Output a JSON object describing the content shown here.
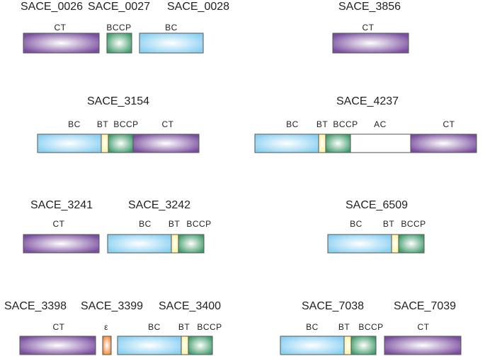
{
  "groups": [
    {
      "genes": [
        "SACE_0026",
        "SACE_0027",
        "SACE_0028"
      ],
      "domains": [
        {
          "label": "CT",
          "color": "#7a4e9e"
        },
        {
          "label": "BCCP",
          "color": "#3e9a6a"
        },
        {
          "label": "BC",
          "color": "#8ad0f2"
        }
      ]
    },
    {
      "genes": [
        "SACE_3856"
      ],
      "domains": [
        {
          "label": "CT",
          "color": "#7a4e9e"
        }
      ]
    },
    {
      "genes": [
        "SACE_3154"
      ],
      "domains": [
        {
          "label": "BC",
          "color": "#8ad0f2"
        },
        {
          "label": "BT",
          "color": "#fff29a"
        },
        {
          "label": "BCCP",
          "color": "#3e9a6a"
        },
        {
          "label": "CT",
          "color": "#7a4e9e"
        }
      ]
    },
    {
      "genes": [
        "SACE_4237"
      ],
      "domains": [
        {
          "label": "BC",
          "color": "#8ad0f2"
        },
        {
          "label": "BT",
          "color": "#fff29a"
        },
        {
          "label": "BCCP",
          "color": "#3e9a6a"
        },
        {
          "label": "AC",
          "color": "#ffffff"
        },
        {
          "label": "CT",
          "color": "#7a4e9e"
        }
      ]
    },
    {
      "genes": [
        "SACE_3241",
        "SACE_3242"
      ],
      "domains": [
        {
          "label": "CT",
          "color": "#7a4e9e"
        },
        {
          "label": "BC",
          "color": "#8ad0f2"
        },
        {
          "label": "BT",
          "color": "#fff29a"
        },
        {
          "label": "BCCP",
          "color": "#3e9a6a"
        }
      ]
    },
    {
      "genes": [
        "SACE_6509"
      ],
      "domains": [
        {
          "label": "BC",
          "color": "#8ad0f2"
        },
        {
          "label": "BT",
          "color": "#fff29a"
        },
        {
          "label": "BCCP",
          "color": "#3e9a6a"
        }
      ]
    },
    {
      "genes": [
        "SACE_3398",
        "SACE_3399",
        "SACE_3400"
      ],
      "domains": [
        {
          "label": "CT",
          "color": "#7a4e9e"
        },
        {
          "label": "ε",
          "color": "#ee8430"
        },
        {
          "label": "BC",
          "color": "#8ad0f2"
        },
        {
          "label": "BT",
          "color": "#fff29a"
        },
        {
          "label": "BCCP",
          "color": "#3e9a6a"
        }
      ]
    },
    {
      "genes": [
        "SACE_7038",
        "SACE_7039"
      ],
      "domains": [
        {
          "label": "BC",
          "color": "#8ad0f2"
        },
        {
          "label": "BT",
          "color": "#fff29a"
        },
        {
          "label": "BCCP",
          "color": "#3e9a6a"
        },
        {
          "label": "CT",
          "color": "#7a4e9e"
        }
      ]
    }
  ]
}
